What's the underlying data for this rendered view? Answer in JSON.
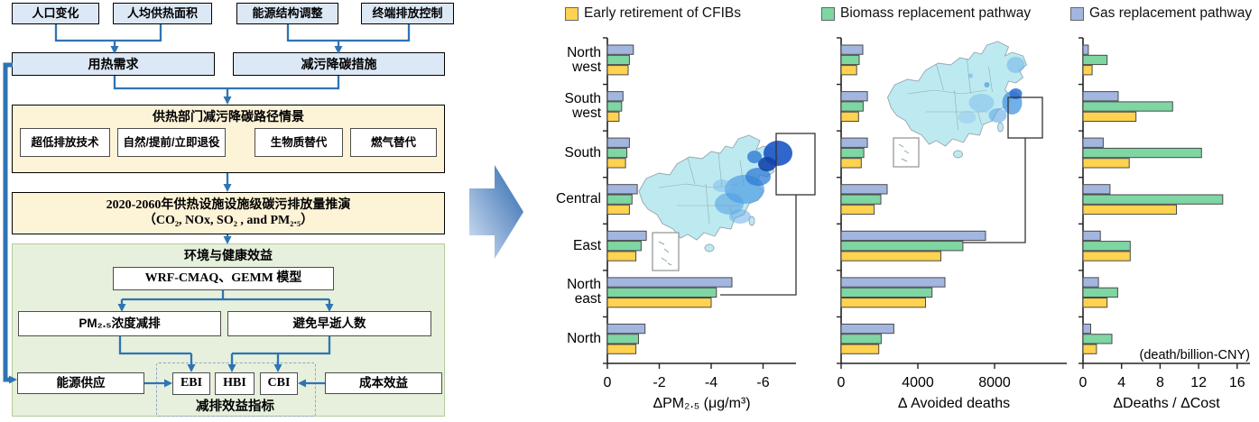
{
  "flowchart": {
    "inputs_left": [
      "人口变化",
      "人均供热面积"
    ],
    "inputs_right": [
      "能源结构调整",
      "终端排放控制"
    ],
    "demand": "用热需求",
    "measures": "减污降碳措施",
    "scenario_panel": {
      "title": "供热部门减污降碳路径情景",
      "options": [
        "超低排放技术",
        "自然/提前/立即退役",
        "生物质替代",
        "燃气替代"
      ]
    },
    "projection_panel": {
      "line1": "2020-2060年供热设施设施级碳污排放量推演",
      "line2": "（CO₂, NOx, SO₂ , and PM₂.₅）"
    },
    "benefit_panel": {
      "title": "环境与健康效益",
      "model": "WRF-CMAQ、GEMM 模型",
      "pm_reduction": "PM₂.₅浓度减排",
      "avoided_deaths": "避免早逝人数",
      "energy_supply": "能源供应",
      "cost_benefit": "成本效益",
      "indicators": [
        "EBI",
        "HBI",
        "CBI"
      ],
      "indicators_label": "减排效益指标"
    }
  },
  "legend": [
    {
      "label": "Early retirement of CFIBs",
      "color": "#FFD24F"
    },
    {
      "label": "Biomass replacement pathway",
      "color": "#7ED6A3"
    },
    {
      "label": "Gas replacement pathway",
      "color": "#A3B6E0"
    }
  ],
  "chart_data": {
    "type": "bar",
    "orientation": "horizontal",
    "grid": false,
    "legend_position": "top",
    "categories": [
      "North west",
      "South west",
      "South",
      "Central",
      "East",
      "North east",
      "North"
    ],
    "bar_order_top_to_bottom": [
      "Gas replacement pathway",
      "Biomass replacement pathway",
      "Early retirement of CFIBs"
    ],
    "charts": [
      {
        "xlabel": "ΔPM₂.₅ (μg/m³)",
        "tick_labels": [
          "0",
          "-2",
          "-4",
          "-6"
        ],
        "tick_values": [
          0,
          -2,
          -4,
          -6
        ],
        "xlim": [
          0,
          -6.5
        ],
        "series": [
          {
            "name": "Early retirement of CFIBs",
            "values": [
              -0.8,
              -0.45,
              -0.7,
              -0.85,
              -1.1,
              -4.0,
              -1.1
            ]
          },
          {
            "name": "Biomass replacement pathway",
            "values": [
              -0.85,
              -0.55,
              -0.75,
              -0.95,
              -1.3,
              -4.2,
              -1.2
            ]
          },
          {
            "name": "Gas replacement pathway",
            "values": [
              -1.0,
              -0.6,
              -0.85,
              -1.15,
              -1.5,
              -4.8,
              -1.45
            ]
          }
        ],
        "inset": "China map of ΔPM2.5, Northeast region boxed and linked to North east bars"
      },
      {
        "xlabel": "Δ Avoided deaths",
        "tick_labels": [
          "0",
          "4000",
          "8000"
        ],
        "tick_values": [
          0,
          4000,
          8000
        ],
        "xlim": [
          0,
          11700
        ],
        "series": [
          {
            "name": "Early retirement of CFIBs",
            "values": [
              810,
              910,
              1050,
              1720,
              5200,
              4400,
              1960
            ]
          },
          {
            "name": "Biomass replacement pathway",
            "values": [
              940,
              1150,
              1180,
              2070,
              6350,
              4740,
              2090
            ]
          },
          {
            "name": "Gas replacement pathway",
            "values": [
              1130,
              1370,
              1370,
              2400,
              7530,
              5410,
              2750
            ]
          }
        ],
        "inset": "China map of avoided deaths, East coast region boxed and linked to East bars"
      },
      {
        "xlabel": "ΔDeaths / ΔCost",
        "annotation": "(death/billion-CNY)",
        "tick_labels": [
          "0",
          "4",
          "8",
          "12",
          "16"
        ],
        "tick_values": [
          0,
          4,
          8,
          12,
          16
        ],
        "xlim": [
          0,
          17.3
        ],
        "series": [
          {
            "name": "Early retirement of CFIBs",
            "values": [
              0.95,
              5.5,
              4.8,
              9.7,
              4.9,
              2.5,
              1.4
            ]
          },
          {
            "name": "Biomass replacement pathway",
            "values": [
              2.5,
              9.3,
              12.3,
              14.5,
              4.9,
              3.6,
              3.0
            ]
          },
          {
            "name": "Gas replacement pathway",
            "values": [
              0.55,
              3.65,
              2.1,
              2.8,
              1.8,
              1.6,
              0.8
            ]
          }
        ]
      }
    ]
  }
}
